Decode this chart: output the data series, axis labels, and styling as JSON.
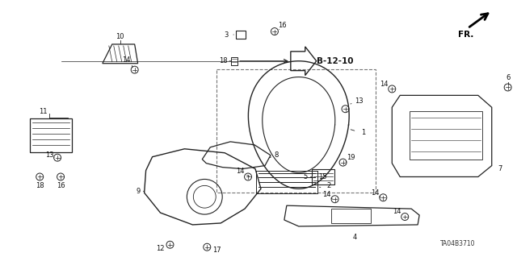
{
  "background_color": "#ffffff",
  "diagram_id": "TA04B3710",
  "line_color": "#222222",
  "label_color": "#111111",
  "label_fs": 6.0,
  "ref_label": "B-12-10",
  "fr_text": "FR."
}
